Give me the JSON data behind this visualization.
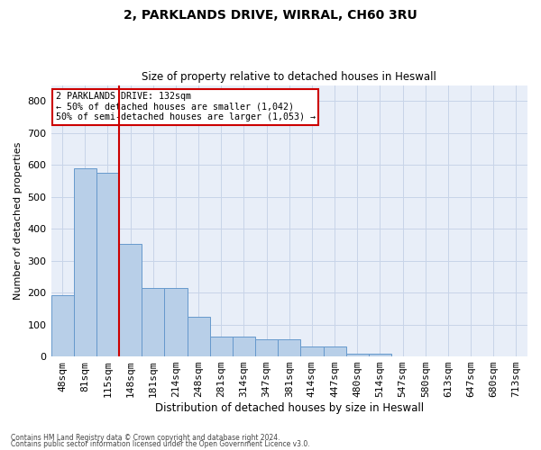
{
  "title_line1": "2, PARKLANDS DRIVE, WIRRAL, CH60 3RU",
  "title_line2": "Size of property relative to detached houses in Heswall",
  "xlabel": "Distribution of detached houses by size in Heswall",
  "ylabel": "Number of detached properties",
  "categories": [
    "48sqm",
    "81sqm",
    "115sqm",
    "148sqm",
    "181sqm",
    "214sqm",
    "248sqm",
    "281sqm",
    "314sqm",
    "347sqm",
    "381sqm",
    "414sqm",
    "447sqm",
    "480sqm",
    "514sqm",
    "547sqm",
    "580sqm",
    "613sqm",
    "647sqm",
    "680sqm",
    "713sqm"
  ],
  "values": [
    192,
    588,
    575,
    353,
    215,
    215,
    125,
    63,
    63,
    55,
    55,
    30,
    30,
    10,
    10,
    0,
    0,
    0,
    0,
    0,
    0
  ],
  "bar_color": "#b8cfe8",
  "bar_edge_color": "#6699cc",
  "grid_color": "#c8d4e8",
  "background_color": "#e8eef8",
  "vline_color": "#cc0000",
  "vline_index": 2.5,
  "annotation_text": "2 PARKLANDS DRIVE: 132sqm\n← 50% of detached houses are smaller (1,042)\n50% of semi-detached houses are larger (1,053) →",
  "annotation_box_color": "#cc0000",
  "ylim": [
    0,
    850
  ],
  "yticks": [
    0,
    100,
    200,
    300,
    400,
    500,
    600,
    700,
    800
  ],
  "footnote1": "Contains HM Land Registry data © Crown copyright and database right 2024.",
  "footnote2": "Contains public sector information licensed under the Open Government Licence v3.0."
}
